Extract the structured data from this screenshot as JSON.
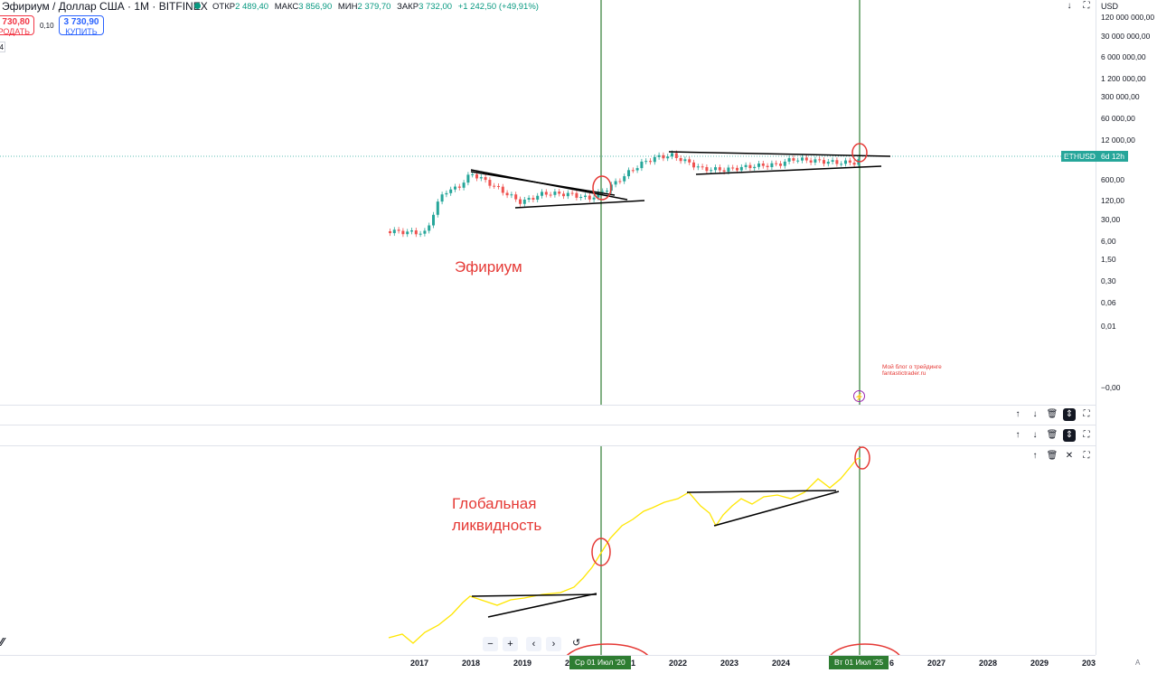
{
  "header": {
    "title": "Эфириум / Доллар США · 1М · BITFINEX",
    "ohlc": [
      {
        "label": "ОТКР",
        "value": "2 489,40"
      },
      {
        "label": "МАКС",
        "value": "3 856,90"
      },
      {
        "label": "МИН",
        "value": "2 379,70"
      },
      {
        "label": "ЗАКР",
        "value": "3 732,00"
      }
    ],
    "change": "+1 242,50 (+49,91%)",
    "sell_price": "730,80",
    "sell_label": "РОДАТЬ",
    "spread": "0,10",
    "buy_price": "3 730,90",
    "buy_label": "КУПИТЬ",
    "lot": "4"
  },
  "price_axis": {
    "currency": "USD",
    "labels": [
      "120 000 000,00",
      "30 000 000,00",
      "6 000 000,00",
      "1 200 000,00",
      "300 000,00",
      "60 000,00",
      "12 000,00",
      "600,00",
      "120,00",
      "30,00",
      "6,00",
      "1,50",
      "0,30",
      "0,06",
      "0,01",
      "−0,00"
    ],
    "symbol_tag": "ETHUSD",
    "countdown": "6d 12h"
  },
  "annotations": {
    "eth_label": "Эфириум",
    "liquidity_label_line1": "Глобальная",
    "liquidity_label_line2": "ликвидность",
    "blog_line1": "Мой блог о трейдинге",
    "blog_line2": "fantastictrader.ru"
  },
  "time_axis": {
    "years": [
      "2017",
      "2018",
      "2019",
      "2",
      "1",
      "2022",
      "2023",
      "2024",
      "6",
      "2027",
      "2028",
      "2029",
      "203"
    ],
    "cursor_left": "Ср 01 Июл '20",
    "cursor_right": "Вт 01 Июл '25",
    "auto_label": "A"
  },
  "toolbar": {
    "zoom_out": "−",
    "zoom_in": "+",
    "scroll_left": "‹",
    "scroll_right": "›",
    "reset": "↺",
    "logo": "TV"
  },
  "colors": {
    "up": "#26a69a",
    "down": "#ef5350",
    "liquidity": "#ffeb3b",
    "cursor": "#2e7d32",
    "annotation": "#e53935"
  }
}
